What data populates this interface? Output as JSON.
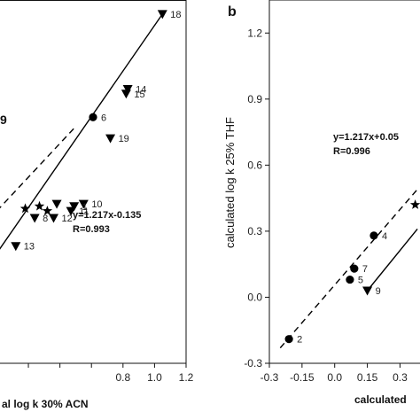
{
  "chart_data": [
    {
      "type": "scatter",
      "panel": "",
      "xlabel": "al log k 30% ACN",
      "ylabel": "",
      "xlim": [
        0.02,
        1.2
      ],
      "ylim": [
        -0.22,
        1.33
      ],
      "xticks": [
        0.2,
        0.4,
        0.6,
        0.8,
        1.0,
        1.2
      ],
      "xticklabels": [
        "",
        "",
        "",
        "0.8",
        "1.0",
        "1.2"
      ],
      "partial_texts": [
        {
          "text": "9",
          "x": 0.02,
          "y": 0.82
        }
      ],
      "series": [
        {
          "marker": "circle",
          "points": [
            {
              "x": 0.61,
              "y": 0.83,
              "label": "6"
            }
          ]
        },
        {
          "marker": "triangle-down",
          "points": [
            {
              "x": 1.05,
              "y": 1.27,
              "label": "18"
            },
            {
              "x": 0.83,
              "y": 0.95,
              "label": "14"
            },
            {
              "x": 0.82,
              "y": 0.93,
              "label": "15"
            },
            {
              "x": 0.72,
              "y": 0.74,
              "label": "19"
            },
            {
              "x": 0.55,
              "y": 0.46,
              "label": "10"
            },
            {
              "x": 0.49,
              "y": 0.45,
              "label": "1"
            },
            {
              "x": 0.47,
              "y": 0.43,
              "label": "11"
            },
            {
              "x": 0.38,
              "y": 0.46,
              "label": ""
            },
            {
              "x": 0.36,
              "y": 0.4,
              "label": "12"
            },
            {
              "x": 0.24,
              "y": 0.4,
              "label": "8"
            },
            {
              "x": 0.12,
              "y": 0.28,
              "label": "13"
            }
          ]
        },
        {
          "marker": "star",
          "points": [
            {
              "x": 0.18,
              "y": 0.44,
              "label": ""
            },
            {
              "x": 0.27,
              "y": 0.45,
              "label": ""
            },
            {
              "x": 0.32,
              "y": 0.43,
              "label": ""
            }
          ]
        }
      ],
      "lines": [
        {
          "style": "solid",
          "x": [
            0.0,
            1.05
          ],
          "y": [
            0.25,
            1.27
          ]
        },
        {
          "style": "dashed",
          "x": [
            0.0,
            0.5
          ],
          "y": [
            0.43,
            0.79
          ]
        }
      ],
      "annotations": [
        "y=1.217x-0.135",
        "R=0.993"
      ]
    },
    {
      "type": "scatter",
      "panel": "b",
      "xlabel": "calculated",
      "ylabel": "calculated log k 25% THF",
      "xlim": [
        -0.3,
        0.4
      ],
      "ylim": [
        -0.3,
        1.35
      ],
      "xticks": [
        -0.3,
        -0.15,
        0.0,
        0.15,
        0.3
      ],
      "xticklabels": [
        "-0.3",
        "-0.15",
        "0.0",
        "0.15",
        "0.3"
      ],
      "yticks": [
        -0.3,
        0.0,
        0.3,
        0.6,
        0.9,
        1.2
      ],
      "yticklabels": [
        "-0.3",
        "0.0",
        "0.3",
        "0.6",
        "0.9",
        "1.2"
      ],
      "series": [
        {
          "marker": "circle",
          "points": [
            {
              "x": -0.21,
              "y": -0.19,
              "label": "2"
            },
            {
              "x": 0.18,
              "y": 0.28,
              "label": "4"
            },
            {
              "x": 0.09,
              "y": 0.13,
              "label": "7"
            },
            {
              "x": 0.07,
              "y": 0.08,
              "label": "5"
            }
          ]
        },
        {
          "marker": "triangle-down",
          "points": [
            {
              "x": 0.15,
              "y": 0.03,
              "label": "9"
            }
          ]
        },
        {
          "marker": "star",
          "points": [
            {
              "x": 0.37,
              "y": 0.42,
              "label": ""
            }
          ]
        }
      ],
      "lines": [
        {
          "style": "dashed",
          "x": [
            -0.25,
            0.38
          ],
          "y": [
            -0.23,
            0.49
          ]
        },
        {
          "style": "solid",
          "x": [
            0.15,
            0.38
          ],
          "y": [
            0.03,
            0.31
          ]
        }
      ],
      "annotations": [
        "y=1.217x+0.05",
        "R=0.996"
      ]
    }
  ]
}
